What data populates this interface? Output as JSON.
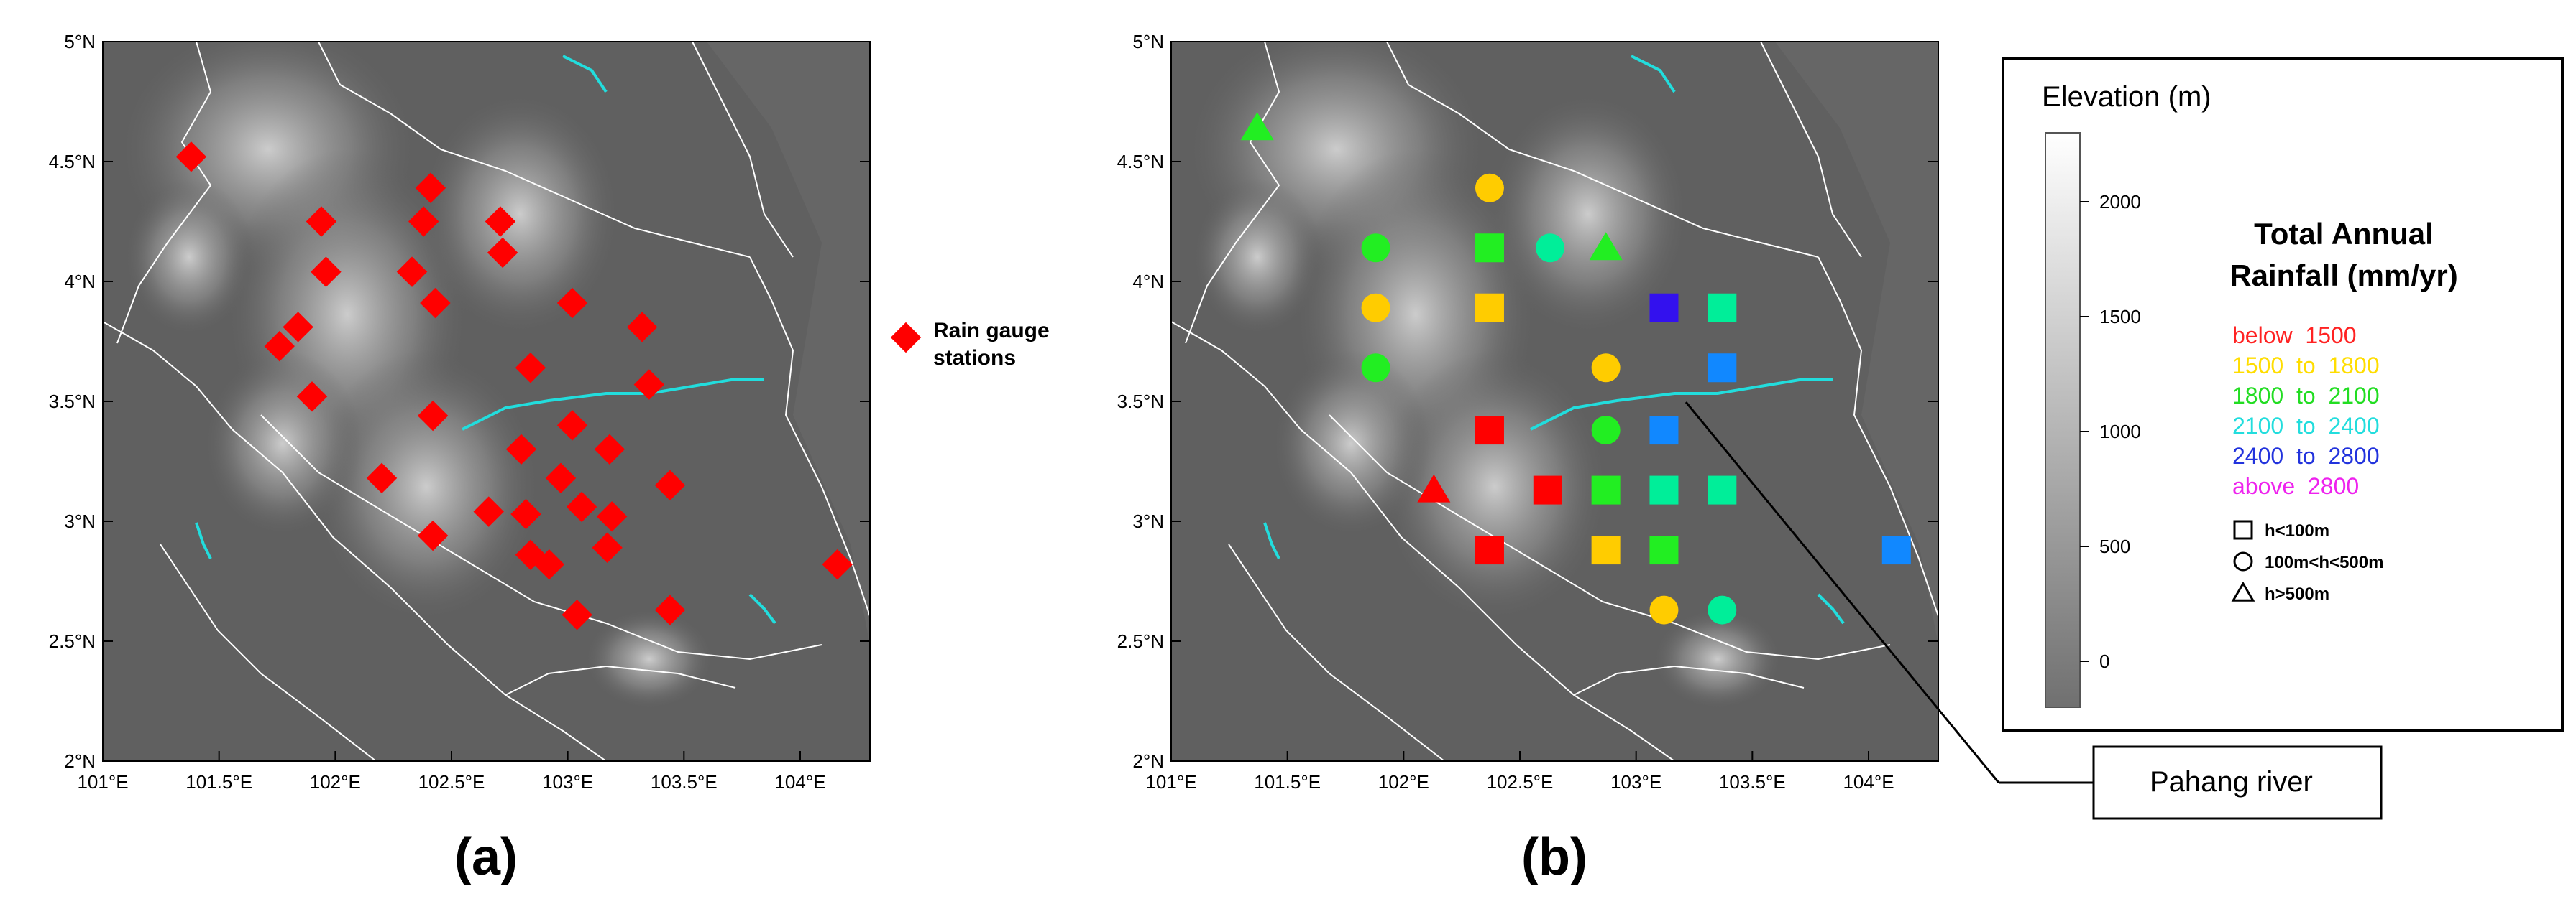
{
  "panels": [
    {
      "caption": "(a)",
      "x_ticks": [
        "101°E",
        "101.5°E",
        "102°E",
        "102.5°E",
        "103°E",
        "103.5°E",
        "104°E"
      ],
      "y_ticks": [
        "5°N",
        "4.5°N",
        "4°N",
        "3.5°N",
        "3°N",
        "2.5°N",
        "2°N"
      ]
    },
    {
      "caption": "(b)",
      "x_ticks": [
        "101°E",
        "101.5°E",
        "102°E",
        "102.5°E",
        "103°E",
        "103.5°E",
        "104°E"
      ],
      "y_ticks": [
        "5°N",
        "4.5°N",
        "4°N",
        "3.5°N",
        "3°N",
        "2.5°N",
        "2°N"
      ]
    }
  ],
  "map_extent": {
    "lon": [
      101,
      104.3
    ],
    "lat": [
      2,
      5
    ]
  },
  "gauge_legend": {
    "line1": "Rain gauge",
    "line2": "stations",
    "color": "#ff0000"
  },
  "gauge_stations": [
    {
      "lon": 101.38,
      "lat": 4.52
    },
    {
      "lon": 101.94,
      "lat": 4.25
    },
    {
      "lon": 102.38,
      "lat": 4.25
    },
    {
      "lon": 102.41,
      "lat": 4.39
    },
    {
      "lon": 102.71,
      "lat": 4.25
    },
    {
      "lon": 101.96,
      "lat": 4.04
    },
    {
      "lon": 102.33,
      "lat": 4.04
    },
    {
      "lon": 102.72,
      "lat": 4.12
    },
    {
      "lon": 102.43,
      "lat": 3.91
    },
    {
      "lon": 103.02,
      "lat": 3.91
    },
    {
      "lon": 101.84,
      "lat": 3.81
    },
    {
      "lon": 101.76,
      "lat": 3.73
    },
    {
      "lon": 103.32,
      "lat": 3.81
    },
    {
      "lon": 102.84,
      "lat": 3.64
    },
    {
      "lon": 101.9,
      "lat": 3.52
    },
    {
      "lon": 103.35,
      "lat": 3.57
    },
    {
      "lon": 102.42,
      "lat": 3.44
    },
    {
      "lon": 103.02,
      "lat": 3.4
    },
    {
      "lon": 102.8,
      "lat": 3.3
    },
    {
      "lon": 103.18,
      "lat": 3.3
    },
    {
      "lon": 102.2,
      "lat": 3.18
    },
    {
      "lon": 102.97,
      "lat": 3.18
    },
    {
      "lon": 103.44,
      "lat": 3.15
    },
    {
      "lon": 103.06,
      "lat": 3.06
    },
    {
      "lon": 102.66,
      "lat": 3.04
    },
    {
      "lon": 102.82,
      "lat": 3.03
    },
    {
      "lon": 103.19,
      "lat": 3.02
    },
    {
      "lon": 102.42,
      "lat": 2.94
    },
    {
      "lon": 103.17,
      "lat": 2.89
    },
    {
      "lon": 102.84,
      "lat": 2.86
    },
    {
      "lon": 102.92,
      "lat": 2.82
    },
    {
      "lon": 104.16,
      "lat": 2.82
    },
    {
      "lon": 103.04,
      "lat": 2.61
    },
    {
      "lon": 103.44,
      "lat": 2.63
    }
  ],
  "rain_stations": [
    {
      "lon": 101.37,
      "lat": 4.64,
      "shape": "triangle",
      "color": "#22ee22"
    },
    {
      "lon": 102.37,
      "lat": 4.39,
      "shape": "circle",
      "color": "#ffcc00"
    },
    {
      "lon": 101.88,
      "lat": 4.14,
      "shape": "circle",
      "color": "#22ee22"
    },
    {
      "lon": 102.37,
      "lat": 4.14,
      "shape": "square",
      "color": "#22ee22"
    },
    {
      "lon": 102.63,
      "lat": 4.14,
      "shape": "circle",
      "color": "#00ee99"
    },
    {
      "lon": 102.87,
      "lat": 4.14,
      "shape": "triangle",
      "color": "#22ee22"
    },
    {
      "lon": 101.88,
      "lat": 3.89,
      "shape": "circle",
      "color": "#ffcc00"
    },
    {
      "lon": 102.37,
      "lat": 3.89,
      "shape": "square",
      "color": "#ffcc00"
    },
    {
      "lon": 103.12,
      "lat": 3.89,
      "shape": "square",
      "color": "#3311ee"
    },
    {
      "lon": 103.37,
      "lat": 3.89,
      "shape": "square",
      "color": "#00ee99"
    },
    {
      "lon": 101.88,
      "lat": 3.64,
      "shape": "circle",
      "color": "#22ee22"
    },
    {
      "lon": 102.87,
      "lat": 3.64,
      "shape": "circle",
      "color": "#ffcc00"
    },
    {
      "lon": 103.37,
      "lat": 3.64,
      "shape": "square",
      "color": "#1188ff"
    },
    {
      "lon": 102.37,
      "lat": 3.38,
      "shape": "square",
      "color": "#ff0000"
    },
    {
      "lon": 102.87,
      "lat": 3.38,
      "shape": "circle",
      "color": "#22ee22"
    },
    {
      "lon": 103.12,
      "lat": 3.38,
      "shape": "square",
      "color": "#1188ff"
    },
    {
      "lon": 102.13,
      "lat": 3.13,
      "shape": "triangle",
      "color": "#ff0000"
    },
    {
      "lon": 102.62,
      "lat": 3.13,
      "shape": "square",
      "color": "#ff0000"
    },
    {
      "lon": 102.87,
      "lat": 3.13,
      "shape": "square",
      "color": "#22ee22"
    },
    {
      "lon": 103.12,
      "lat": 3.13,
      "shape": "square",
      "color": "#00ee99"
    },
    {
      "lon": 103.37,
      "lat": 3.13,
      "shape": "square",
      "color": "#00ee99"
    },
    {
      "lon": 102.37,
      "lat": 2.88,
      "shape": "square",
      "color": "#ff0000"
    },
    {
      "lon": 102.87,
      "lat": 2.88,
      "shape": "square",
      "color": "#ffcc00"
    },
    {
      "lon": 103.12,
      "lat": 2.88,
      "shape": "square",
      "color": "#22ee22"
    },
    {
      "lon": 104.12,
      "lat": 2.88,
      "shape": "square",
      "color": "#1188ff"
    },
    {
      "lon": 103.12,
      "lat": 2.63,
      "shape": "circle",
      "color": "#ffcc00"
    },
    {
      "lon": 103.37,
      "lat": 2.63,
      "shape": "circle",
      "color": "#00ee99"
    }
  ],
  "legend": {
    "elevation_title": "Elevation (m)",
    "elevation_ticks": [
      "2000",
      "1500",
      "1000",
      "500",
      "0"
    ],
    "rainfall_title_line1": "Total Annual",
    "rainfall_title_line2": "Rainfall (mm/yr)",
    "rainfall_classes": [
      {
        "label": "below  1500",
        "color": "#ff2222"
      },
      {
        "label": "1500  to  1800",
        "color": "#ffdd00"
      },
      {
        "label": "1800  to  2100",
        "color": "#22dd22"
      },
      {
        "label": "2100  to  2400",
        "color": "#22dddd"
      },
      {
        "label": "2400  to  2800",
        "color": "#2233dd"
      },
      {
        "label": "above  2800",
        "color": "#ee22ee"
      }
    ],
    "shape_classes": [
      {
        "shape": "square",
        "label": "h<100m"
      },
      {
        "shape": "circle",
        "label": "100m<h<500m"
      },
      {
        "shape": "triangle",
        "label": "h>500m"
      }
    ]
  },
  "river_callout": "Pahang river",
  "colors": {
    "map_bg": "#606060",
    "border": "#ffffff",
    "river": "#22dddd",
    "highland": "#b4b4b4"
  }
}
